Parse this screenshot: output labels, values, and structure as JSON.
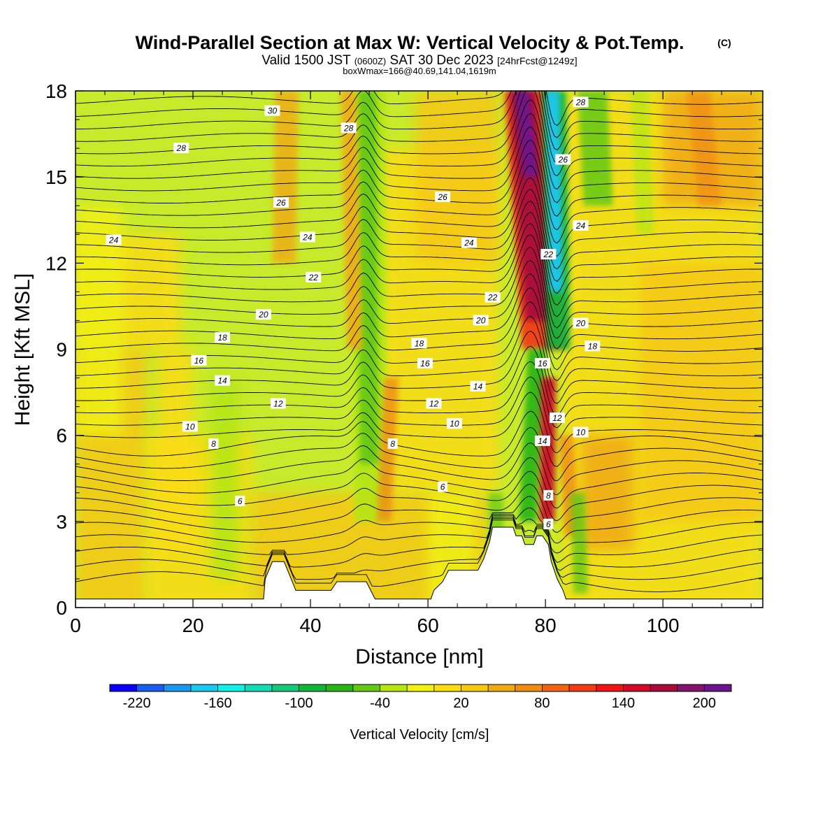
{
  "header": {
    "title_main": "Wind-Parallel Section at Max W: Vertical Velocity & Pot.Temp.",
    "title_copyright": "(C)",
    "subtitle_a": "Valid 1500 JST",
    "subtitle_b": "(0600Z)",
    "subtitle_c": "SAT 30 Dec 2023",
    "subtitle_d": "[24hrFcst@1249z]",
    "info_line": "boxWmax=166@40.69,141.04,1619m"
  },
  "chart_data": {
    "type": "heatmap",
    "title": "Wind-Parallel Section at Max W: Vertical Velocity & Pot.Temp.",
    "xlabel": "Distance [nm]",
    "ylabel": "Height [Kft MSL]",
    "xlim": [
      0,
      117
    ],
    "ylim": [
      0,
      18
    ],
    "x_ticks": [
      0,
      20,
      40,
      60,
      80,
      100
    ],
    "x_tick_labels": [
      "0",
      "20",
      "40",
      "60",
      "80",
      "100"
    ],
    "y_ticks": [
      0,
      3,
      6,
      9,
      12,
      15,
      18
    ],
    "y_tick_labels": [
      "0",
      "3",
      "6",
      "9",
      "12",
      "15",
      "18"
    ],
    "grid": false,
    "colorbar": {
      "label": "Vertical Velocity [cm/s]",
      "position": "bottom",
      "tick_values": [
        -220,
        -160,
        -100,
        -40,
        20,
        80,
        140,
        200
      ],
      "tick_labels": [
        "-220",
        "-160",
        "-100",
        "-40",
        "20",
        "80",
        "140",
        "200"
      ],
      "colors": [
        "#0a00f5",
        "#1a5cf0",
        "#1a96f0",
        "#1ac8f0",
        "#14f0e6",
        "#14dcb4",
        "#14c878",
        "#14b43c",
        "#28b414",
        "#64c814",
        "#b4e614",
        "#f0f014",
        "#fadc14",
        "#f5c814",
        "#f0aa14",
        "#f08c14",
        "#f06414",
        "#f03c14",
        "#f01414",
        "#d20a28",
        "#aa0a3c",
        "#82146e",
        "#6e148c"
      ]
    },
    "vertical_velocity_bands": [
      {
        "x_low": 48,
        "x_high": 51,
        "peak_w": -60,
        "top_kft": 18,
        "bottom_kft": 3
      },
      {
        "x_low": 45,
        "x_high": 48,
        "peak_w": 60,
        "top_kft": 18,
        "bottom_kft": 4
      },
      {
        "x_low": 73,
        "x_high": 79,
        "peak_w": 200,
        "top_kft": 18,
        "bottom_kft": 9
      },
      {
        "x_low": 79,
        "x_high": 83,
        "peak_w": -180,
        "top_kft": 18,
        "bottom_kft": 9
      },
      {
        "x_low": 77,
        "x_high": 80,
        "peak_w": -70,
        "top_kft": 9,
        "bottom_kft": 2.5
      },
      {
        "x_low": 79,
        "x_high": 82,
        "peak_w": 150,
        "top_kft": 8,
        "bottom_kft": 2.5
      },
      {
        "x_low": 85,
        "x_high": 91,
        "peak_w": -60,
        "top_kft": 18,
        "bottom_kft": 15
      },
      {
        "x_low": 34,
        "x_high": 39,
        "peak_w": 40,
        "top_kft": 18,
        "bottom_kft": 12
      }
    ],
    "pot_temp_labels": [
      {
        "x": 33.5,
        "y": 17.3,
        "label": "30"
      },
      {
        "x": 18,
        "y": 16.0,
        "label": "28"
      },
      {
        "x": 46.5,
        "y": 16.7,
        "label": "28"
      },
      {
        "x": 86,
        "y": 17.6,
        "label": "28"
      },
      {
        "x": 83,
        "y": 15.6,
        "label": "26"
      },
      {
        "x": 35,
        "y": 14.1,
        "label": "26"
      },
      {
        "x": 62.5,
        "y": 14.3,
        "label": "26"
      },
      {
        "x": 6.5,
        "y": 12.8,
        "label": "24"
      },
      {
        "x": 39.5,
        "y": 12.9,
        "label": "24"
      },
      {
        "x": 67,
        "y": 12.7,
        "label": "24"
      },
      {
        "x": 86,
        "y": 13.3,
        "label": "24"
      },
      {
        "x": 80.5,
        "y": 12.3,
        "label": "22"
      },
      {
        "x": 40.5,
        "y": 11.5,
        "label": "22"
      },
      {
        "x": 71,
        "y": 10.8,
        "label": "22"
      },
      {
        "x": 32,
        "y": 10.2,
        "label": "20"
      },
      {
        "x": 69,
        "y": 10.0,
        "label": "20"
      },
      {
        "x": 86,
        "y": 9.9,
        "label": "20"
      },
      {
        "x": 25,
        "y": 9.4,
        "label": "18"
      },
      {
        "x": 58.5,
        "y": 9.2,
        "label": "18"
      },
      {
        "x": 88,
        "y": 9.1,
        "label": "18"
      },
      {
        "x": 21,
        "y": 8.6,
        "label": "16"
      },
      {
        "x": 59.5,
        "y": 8.5,
        "label": "16"
      },
      {
        "x": 79.5,
        "y": 8.5,
        "label": "16"
      },
      {
        "x": 25,
        "y": 7.9,
        "label": "14"
      },
      {
        "x": 68.5,
        "y": 7.7,
        "label": "14"
      },
      {
        "x": 79.5,
        "y": 5.8,
        "label": "14"
      },
      {
        "x": 34.5,
        "y": 7.1,
        "label": "12"
      },
      {
        "x": 61,
        "y": 7.1,
        "label": "12"
      },
      {
        "x": 82,
        "y": 6.6,
        "label": "12"
      },
      {
        "x": 19.5,
        "y": 6.3,
        "label": "10"
      },
      {
        "x": 64.5,
        "y": 6.4,
        "label": "10"
      },
      {
        "x": 86,
        "y": 6.1,
        "label": "10"
      },
      {
        "x": 23.5,
        "y": 5.7,
        "label": "8"
      },
      {
        "x": 54,
        "y": 5.7,
        "label": "8"
      },
      {
        "x": 80.5,
        "y": 3.9,
        "label": "8"
      },
      {
        "x": 28,
        "y": 3.7,
        "label": "6"
      },
      {
        "x": 62.5,
        "y": 4.2,
        "label": "6"
      },
      {
        "x": 80.5,
        "y": 2.9,
        "label": "6"
      }
    ],
    "terrain_kft": [
      [
        0,
        0.3
      ],
      [
        32,
        0.3
      ],
      [
        32.3,
        1.0
      ],
      [
        33.5,
        1.6
      ],
      [
        35.5,
        1.6
      ],
      [
        36.5,
        1.1
      ],
      [
        37.5,
        0.6
      ],
      [
        43.5,
        0.6
      ],
      [
        44.5,
        0.9
      ],
      [
        49.5,
        0.9
      ],
      [
        51,
        0.3
      ],
      [
        60.5,
        0.3
      ],
      [
        61,
        0.6
      ],
      [
        62.5,
        0.9
      ],
      [
        63.5,
        1.3
      ],
      [
        68.5,
        1.3
      ],
      [
        69.5,
        1.7
      ],
      [
        70.5,
        2.3
      ],
      [
        71,
        2.8
      ],
      [
        74.5,
        2.8
      ],
      [
        75,
        2.5
      ],
      [
        76,
        2.5
      ],
      [
        76.5,
        2.2
      ],
      [
        78,
        2.2
      ],
      [
        78.5,
        2.5
      ],
      [
        79.5,
        2.5
      ],
      [
        80.5,
        2.2
      ],
      [
        81,
        1.6
      ],
      [
        82,
        1.0
      ],
      [
        83,
        0.6
      ],
      [
        83.5,
        0.3
      ],
      [
        117,
        0.3
      ]
    ]
  }
}
